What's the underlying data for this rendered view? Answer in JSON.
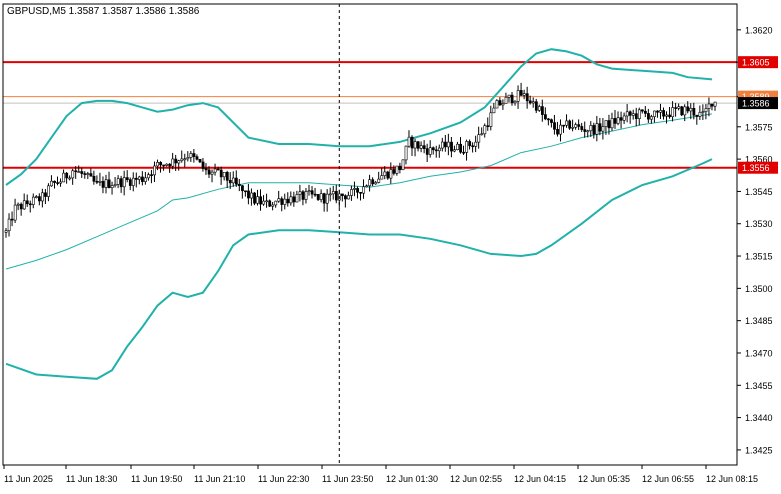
{
  "header": {
    "symbol_info": "GBPUSD,M5  1.3587 1.3587 1.3586 1.3586"
  },
  "colors": {
    "background": "#ffffff",
    "frame": "#000000",
    "bands": "#20b2aa",
    "candle_up": "#000000",
    "candle_down": "#000000",
    "resistance_line": "#e00000",
    "support_line": "#e00000",
    "bid_line": "#c0c0c0",
    "ask_line": "#f08040"
  },
  "chart_data": {
    "type": "candlestick",
    "symbol": "GBPUSD",
    "timeframe": "M5",
    "ylim": [
      1.3418,
      1.3632
    ],
    "y_ticks": [
      "1.3620",
      "1.3605",
      "1.3589",
      "1.3575",
      "1.3560",
      "1.3545",
      "1.3530",
      "1.3515",
      "1.3500",
      "1.3485",
      "1.3470",
      "1.3455",
      "1.3440",
      "1.3425"
    ],
    "x_ticks": [
      "11 Jun 2025",
      "11 Jun 18:30",
      "11 Jun 19:50",
      "11 Jun 21:10",
      "11 Jun 22:30",
      "11 Jun 23:50",
      "12 Jun 01:30",
      "12 Jun 02:55",
      "12 Jun 04:15",
      "12 Jun 05:35",
      "12 Jun 06:55",
      "12 Jun 08:15"
    ],
    "n_bars": 235,
    "period_separator_bar": 110,
    "horizontal_levels": [
      {
        "name": "resistance",
        "value": 1.3605,
        "label": "1.3605"
      },
      {
        "name": "support",
        "value": 1.3556,
        "label": "1.3556"
      },
      {
        "name": "ask",
        "value": 1.3589,
        "label": "1.3589"
      },
      {
        "name": "bid",
        "value": 1.3586,
        "label": "1.3586"
      }
    ],
    "price_path": [
      [
        0,
        1.3526
      ],
      [
        3,
        1.3537
      ],
      [
        8,
        1.354
      ],
      [
        12,
        1.3542
      ],
      [
        15,
        1.3548
      ],
      [
        18,
        1.355
      ],
      [
        22,
        1.3555
      ],
      [
        25,
        1.3553
      ],
      [
        30,
        1.3548
      ],
      [
        35,
        1.3549
      ],
      [
        40,
        1.355
      ],
      [
        45,
        1.3551
      ],
      [
        50,
        1.3557
      ],
      [
        55,
        1.3559
      ],
      [
        60,
        1.3562
      ],
      [
        63,
        1.3559
      ],
      [
        66,
        1.3554
      ],
      [
        70,
        1.3553
      ],
      [
        74,
        1.355
      ],
      [
        78,
        1.3545
      ],
      [
        82,
        1.3541
      ],
      [
        86,
        1.3539
      ],
      [
        90,
        1.3541
      ],
      [
        95,
        1.3542
      ],
      [
        100,
        1.3543
      ],
      [
        105,
        1.3542
      ],
      [
        110,
        1.3543
      ],
      [
        115,
        1.3544
      ],
      [
        120,
        1.355
      ],
      [
        125,
        1.3553
      ],
      [
        130,
        1.3556
      ],
      [
        133,
        1.3568
      ],
      [
        136,
        1.3566
      ],
      [
        140,
        1.3564
      ],
      [
        145,
        1.3566
      ],
      [
        150,
        1.3565
      ],
      [
        155,
        1.3568
      ],
      [
        158,
        1.3575
      ],
      [
        162,
        1.3585
      ],
      [
        166,
        1.3588
      ],
      [
        170,
        1.359
      ],
      [
        175,
        1.3585
      ],
      [
        178,
        1.3578
      ],
      [
        182,
        1.3573
      ],
      [
        186,
        1.3576
      ],
      [
        190,
        1.3574
      ],
      [
        195,
        1.3574
      ],
      [
        200,
        1.3577
      ],
      [
        205,
        1.358
      ],
      [
        210,
        1.3581
      ],
      [
        215,
        1.358
      ],
      [
        220,
        1.3582
      ],
      [
        225,
        1.3583
      ],
      [
        230,
        1.358
      ],
      [
        233,
        1.3587
      ],
      [
        235,
        1.3586
      ]
    ],
    "bollinger_upper": [
      [
        0,
        1.3548
      ],
      [
        5,
        1.3553
      ],
      [
        10,
        1.356
      ],
      [
        15,
        1.357
      ],
      [
        20,
        1.358
      ],
      [
        25,
        1.3586
      ],
      [
        30,
        1.3587
      ],
      [
        35,
        1.3587
      ],
      [
        40,
        1.3586
      ],
      [
        45,
        1.3584
      ],
      [
        50,
        1.3582
      ],
      [
        55,
        1.3583
      ],
      [
        60,
        1.3585
      ],
      [
        65,
        1.3586
      ],
      [
        70,
        1.3584
      ],
      [
        75,
        1.3577
      ],
      [
        80,
        1.357
      ],
      [
        90,
        1.3567
      ],
      [
        100,
        1.3567
      ],
      [
        110,
        1.3566
      ],
      [
        120,
        1.3566
      ],
      [
        130,
        1.3568
      ],
      [
        135,
        1.357
      ],
      [
        140,
        1.3572
      ],
      [
        150,
        1.3577
      ],
      [
        158,
        1.3584
      ],
      [
        165,
        1.3595
      ],
      [
        170,
        1.3603
      ],
      [
        175,
        1.3609
      ],
      [
        180,
        1.3611
      ],
      [
        185,
        1.361
      ],
      [
        190,
        1.3608
      ],
      [
        195,
        1.3604
      ],
      [
        200,
        1.3602
      ],
      [
        210,
        1.3601
      ],
      [
        220,
        1.36
      ],
      [
        225,
        1.3598
      ],
      [
        233,
        1.3597
      ]
    ],
    "bollinger_middle": [
      [
        0,
        1.3509
      ],
      [
        10,
        1.3513
      ],
      [
        20,
        1.3518
      ],
      [
        30,
        1.3524
      ],
      [
        40,
        1.353
      ],
      [
        50,
        1.3536
      ],
      [
        55,
        1.3541
      ],
      [
        60,
        1.3542
      ],
      [
        70,
        1.3546
      ],
      [
        80,
        1.3549
      ],
      [
        90,
        1.3549
      ],
      [
        100,
        1.3549
      ],
      [
        110,
        1.3548
      ],
      [
        120,
        1.3547
      ],
      [
        130,
        1.3549
      ],
      [
        140,
        1.3552
      ],
      [
        150,
        1.3554
      ],
      [
        160,
        1.3557
      ],
      [
        170,
        1.3563
      ],
      [
        180,
        1.3566
      ],
      [
        190,
        1.357
      ],
      [
        200,
        1.3573
      ],
      [
        210,
        1.3576
      ],
      [
        220,
        1.3578
      ],
      [
        233,
        1.3581
      ]
    ],
    "bollinger_lower": [
      [
        0,
        1.3465
      ],
      [
        10,
        1.346
      ],
      [
        20,
        1.3459
      ],
      [
        30,
        1.3458
      ],
      [
        35,
        1.3462
      ],
      [
        40,
        1.3473
      ],
      [
        45,
        1.3482
      ],
      [
        50,
        1.3492
      ],
      [
        55,
        1.3498
      ],
      [
        60,
        1.3496
      ],
      [
        65,
        1.3498
      ],
      [
        70,
        1.3508
      ],
      [
        75,
        1.352
      ],
      [
        80,
        1.3525
      ],
      [
        90,
        1.3527
      ],
      [
        100,
        1.3527
      ],
      [
        110,
        1.3526
      ],
      [
        120,
        1.3525
      ],
      [
        130,
        1.3525
      ],
      [
        140,
        1.3523
      ],
      [
        150,
        1.352
      ],
      [
        160,
        1.3516
      ],
      [
        170,
        1.3515
      ],
      [
        175,
        1.3516
      ],
      [
        180,
        1.352
      ],
      [
        190,
        1.353
      ],
      [
        200,
        1.3541
      ],
      [
        210,
        1.3548
      ],
      [
        220,
        1.3552
      ],
      [
        230,
        1.3558
      ],
      [
        233,
        1.356
      ]
    ]
  }
}
